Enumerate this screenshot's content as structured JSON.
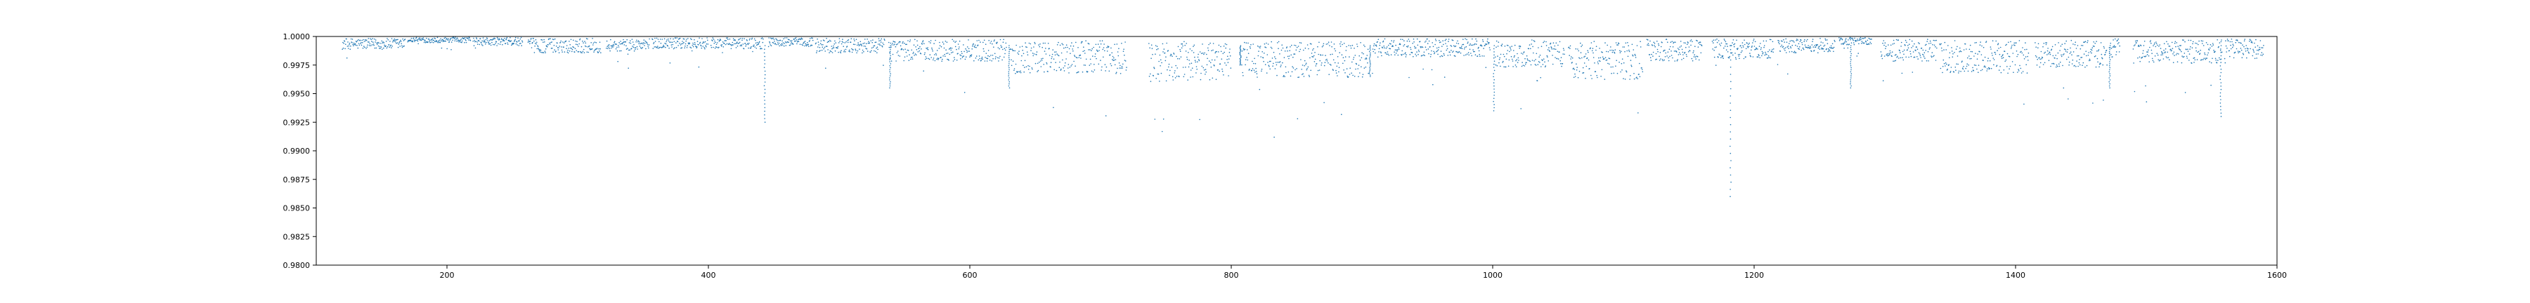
{
  "chart_data": {
    "type": "scatter",
    "title": "",
    "xlabel": "",
    "ylabel": "",
    "xlim": [
      100,
      1600
    ],
    "ylim": [
      0.98,
      1.0
    ],
    "x_ticks": [
      200,
      400,
      600,
      800,
      1000,
      1200,
      1400,
      1600
    ],
    "x_tick_labels": [
      "200",
      "400",
      "600",
      "800",
      "1000",
      "1200",
      "1400",
      "1600"
    ],
    "y_ticks": [
      0.98,
      0.9825,
      0.985,
      0.9875,
      0.99,
      0.9925,
      0.995,
      0.9975,
      1.0
    ],
    "y_tick_labels": [
      "0.9800",
      "0.9825",
      "0.9850",
      "0.9875",
      "0.9900",
      "0.9925",
      "0.9950",
      "0.9975",
      "1.0000"
    ],
    "grid": false,
    "marker_color": "#1f77b4",
    "segments": [
      {
        "x_start": 120,
        "x_end": 168,
        "base": 0.99935,
        "spread": 0.0006
      },
      {
        "x_start": 170,
        "x_end": 218,
        "base": 0.9997,
        "spread": 0.0003
      },
      {
        "x_start": 220,
        "x_end": 258,
        "base": 0.99955,
        "spread": 0.00045
      },
      {
        "x_start": 262,
        "x_end": 318,
        "base": 0.9992,
        "spread": 0.0008
      },
      {
        "x_start": 322,
        "x_end": 355,
        "base": 0.99925,
        "spread": 0.0007
      },
      {
        "x_start": 357,
        "x_end": 400,
        "base": 0.9994,
        "spread": 0.0006
      },
      {
        "x_start": 402,
        "x_end": 442,
        "base": 0.9994,
        "spread": 0.0006
      },
      {
        "x_start": 446,
        "x_end": 480,
        "base": 0.9995,
        "spread": 0.0005
      },
      {
        "x_start": 482,
        "x_end": 535,
        "base": 0.9992,
        "spread": 0.0008
      },
      {
        "x_start": 538,
        "x_end": 628,
        "base": 0.9988,
        "spread": 0.0012
      },
      {
        "x_start": 631,
        "x_end": 720,
        "base": 0.9982,
        "spread": 0.0018
      },
      {
        "x_start": 737,
        "x_end": 800,
        "base": 0.9978,
        "spread": 0.0022
      },
      {
        "x_start": 808,
        "x_end": 905,
        "base": 0.998,
        "spread": 0.002
      },
      {
        "x_start": 908,
        "x_end": 998,
        "base": 0.999,
        "spread": 0.001
      },
      {
        "x_start": 1002,
        "x_end": 1055,
        "base": 0.9985,
        "spread": 0.0015
      },
      {
        "x_start": 1058,
        "x_end": 1115,
        "base": 0.9979,
        "spread": 0.0021
      },
      {
        "x_start": 1118,
        "x_end": 1160,
        "base": 0.9988,
        "spread": 0.0012
      },
      {
        "x_start": 1168,
        "x_end": 1215,
        "base": 0.9989,
        "spread": 0.0011
      },
      {
        "x_start": 1218,
        "x_end": 1262,
        "base": 0.9992,
        "spread": 0.0008
      },
      {
        "x_start": 1265,
        "x_end": 1290,
        "base": 0.9996,
        "spread": 0.0004
      },
      {
        "x_start": 1297,
        "x_end": 1340,
        "base": 0.9988,
        "spread": 0.0012
      },
      {
        "x_start": 1342,
        "x_end": 1410,
        "base": 0.9982,
        "spread": 0.0018
      },
      {
        "x_start": 1415,
        "x_end": 1470,
        "base": 0.9985,
        "spread": 0.0015
      },
      {
        "x_start": 1472,
        "x_end": 1480,
        "base": 0.999,
        "spread": 0.001
      },
      {
        "x_start": 1490,
        "x_end": 1558,
        "base": 0.9987,
        "spread": 0.0013
      },
      {
        "x_start": 1560,
        "x_end": 1590,
        "base": 0.9989,
        "spread": 0.0011
      }
    ],
    "transit_events": [
      {
        "x": 443,
        "depth": 0.9925
      },
      {
        "x": 539,
        "depth": 0.9955
      },
      {
        "x": 630,
        "depth": 0.9955
      },
      {
        "x": 807,
        "depth": 0.9975
      },
      {
        "x": 906,
        "depth": 0.9965
      },
      {
        "x": 1001,
        "depth": 0.9935
      },
      {
        "x": 1182,
        "depth": 0.986
      },
      {
        "x": 1274,
        "depth": 0.9955
      },
      {
        "x": 1472,
        "depth": 0.9955
      },
      {
        "x": 1557,
        "depth": 0.993
      }
    ]
  }
}
